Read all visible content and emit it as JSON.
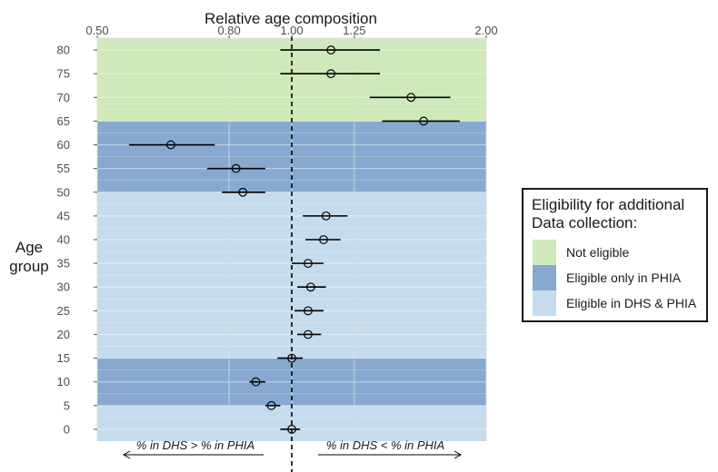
{
  "chart_data": {
    "type": "forest",
    "title": "Relative age composition",
    "ylabel": [
      "Age",
      "group"
    ],
    "x_scale": "log",
    "xlim": [
      0.5,
      2.0
    ],
    "x_ticks": [
      0.5,
      0.8,
      1.0,
      1.25,
      2.0
    ],
    "x_tick_labels": [
      "0.50",
      "0.80",
      "1.00",
      "1.25",
      "2.00"
    ],
    "y_ticks": [
      0,
      5,
      10,
      15,
      20,
      25,
      30,
      35,
      40,
      45,
      50,
      55,
      60,
      65,
      70,
      75,
      80
    ],
    "ylim": [
      -2.5,
      82.5
    ],
    "reference_line": 1.0,
    "bands": [
      {
        "from": -2.5,
        "to": 5,
        "category": "both",
        "color": "#c6dcec"
      },
      {
        "from": 5,
        "to": 15,
        "category": "phia",
        "color": "#87a9d0"
      },
      {
        "from": 15,
        "to": 50,
        "category": "both",
        "color": "#c6dcec"
      },
      {
        "from": 50,
        "to": 65,
        "category": "phia",
        "color": "#87a9d0"
      },
      {
        "from": 65,
        "to": 82.5,
        "category": "not",
        "color": "#cfe9bb"
      }
    ],
    "points": [
      {
        "age": 0,
        "value": 1.0,
        "lower": 0.96,
        "upper": 1.03
      },
      {
        "age": 5,
        "value": 0.93,
        "lower": 0.91,
        "upper": 0.96
      },
      {
        "age": 10,
        "value": 0.88,
        "lower": 0.86,
        "upper": 0.91
      },
      {
        "age": 15,
        "value": 1.0,
        "lower": 0.95,
        "upper": 1.04
      },
      {
        "age": 20,
        "value": 1.06,
        "lower": 1.02,
        "upper": 1.11
      },
      {
        "age": 25,
        "value": 1.06,
        "lower": 1.01,
        "upper": 1.12
      },
      {
        "age": 30,
        "value": 1.07,
        "lower": 1.02,
        "upper": 1.13
      },
      {
        "age": 35,
        "value": 1.06,
        "lower": 1.0,
        "upper": 1.12
      },
      {
        "age": 40,
        "value": 1.12,
        "lower": 1.05,
        "upper": 1.19
      },
      {
        "age": 45,
        "value": 1.13,
        "lower": 1.04,
        "upper": 1.22
      },
      {
        "age": 50,
        "value": 0.84,
        "lower": 0.78,
        "upper": 0.91
      },
      {
        "age": 55,
        "value": 0.82,
        "lower": 0.74,
        "upper": 0.91
      },
      {
        "age": 60,
        "value": 0.65,
        "lower": 0.56,
        "upper": 0.76
      },
      {
        "age": 65,
        "value": 1.6,
        "lower": 1.38,
        "upper": 1.82
      },
      {
        "age": 70,
        "value": 1.53,
        "lower": 1.32,
        "upper": 1.76
      },
      {
        "age": 75,
        "value": 1.15,
        "lower": 0.96,
        "upper": 1.37
      },
      {
        "age": 80,
        "value": 1.15,
        "lower": 0.96,
        "upper": 1.37
      }
    ],
    "annotations": {
      "left": "% in DHS > % in PHIA",
      "right": "% in DHS < % in PHIA"
    },
    "legend": {
      "title": "Eligibility for additional Data collection:",
      "placement": "right",
      "items": [
        {
          "key": "not",
          "label": "Not eligible",
          "color": "#cfe9bb"
        },
        {
          "key": "phia",
          "label": "Eligible only in PHIA",
          "color": "#87a9d0"
        },
        {
          "key": "both",
          "label": "Eligible in DHS & PHIA",
          "color": "#c6dcec"
        }
      ]
    },
    "grid": true
  }
}
